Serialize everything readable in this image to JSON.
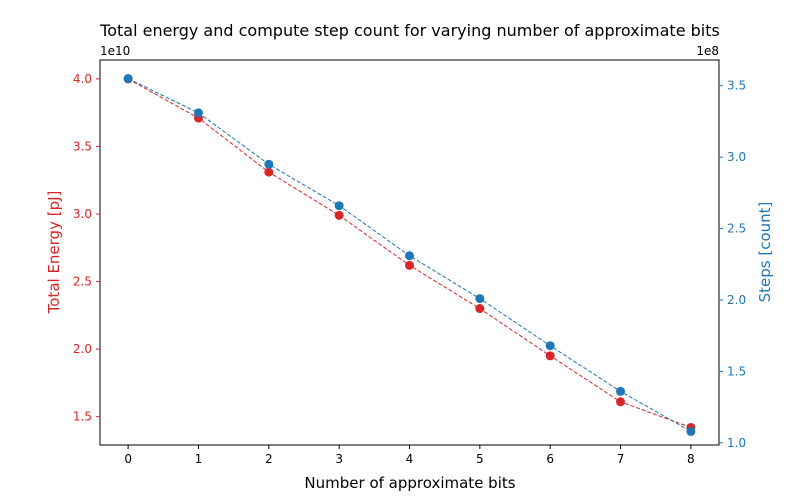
{
  "chart_data": {
    "type": "line",
    "title": "Total energy and compute step count for varying number of approximate bits",
    "xlabel": "Number of approximate bits",
    "x": [
      0,
      1,
      2,
      3,
      4,
      5,
      6,
      7,
      8
    ],
    "xlim": [
      -0.4,
      8.4
    ],
    "xticks": [
      "0",
      "1",
      "2",
      "3",
      "4",
      "5",
      "6",
      "7",
      "8"
    ],
    "grid": false,
    "left_axis": {
      "label": "Total Energy [pJ]",
      "multiplier": "1e10",
      "ylim": [
        1.29,
        4.14
      ],
      "ticks": [
        1.5,
        2.0,
        2.5,
        3.0,
        3.5,
        4.0
      ],
      "tick_labels": [
        "1.5",
        "2.0",
        "2.5",
        "3.0",
        "3.5",
        "4.0"
      ],
      "color": "#d62728"
    },
    "right_axis": {
      "label": "Steps [count]",
      "multiplier": "1e8",
      "ylim": [
        0.985,
        3.68
      ],
      "ticks": [
        1.0,
        1.5,
        2.0,
        2.5,
        3.0,
        3.5
      ],
      "tick_labels": [
        "1.0",
        "1.5",
        "2.0",
        "2.5",
        "3.0",
        "3.5"
      ],
      "color": "#1f77b4"
    },
    "series": [
      {
        "axis": "left",
        "color": "#d62728",
        "values": [
          4.0,
          3.71,
          3.31,
          2.99,
          2.62,
          2.3,
          1.95,
          1.61,
          1.42
        ]
      },
      {
        "axis": "right",
        "color": "#1f77b4",
        "values": [
          3.55,
          3.31,
          2.95,
          2.66,
          2.31,
          2.01,
          1.68,
          1.36,
          1.08
        ]
      }
    ]
  }
}
